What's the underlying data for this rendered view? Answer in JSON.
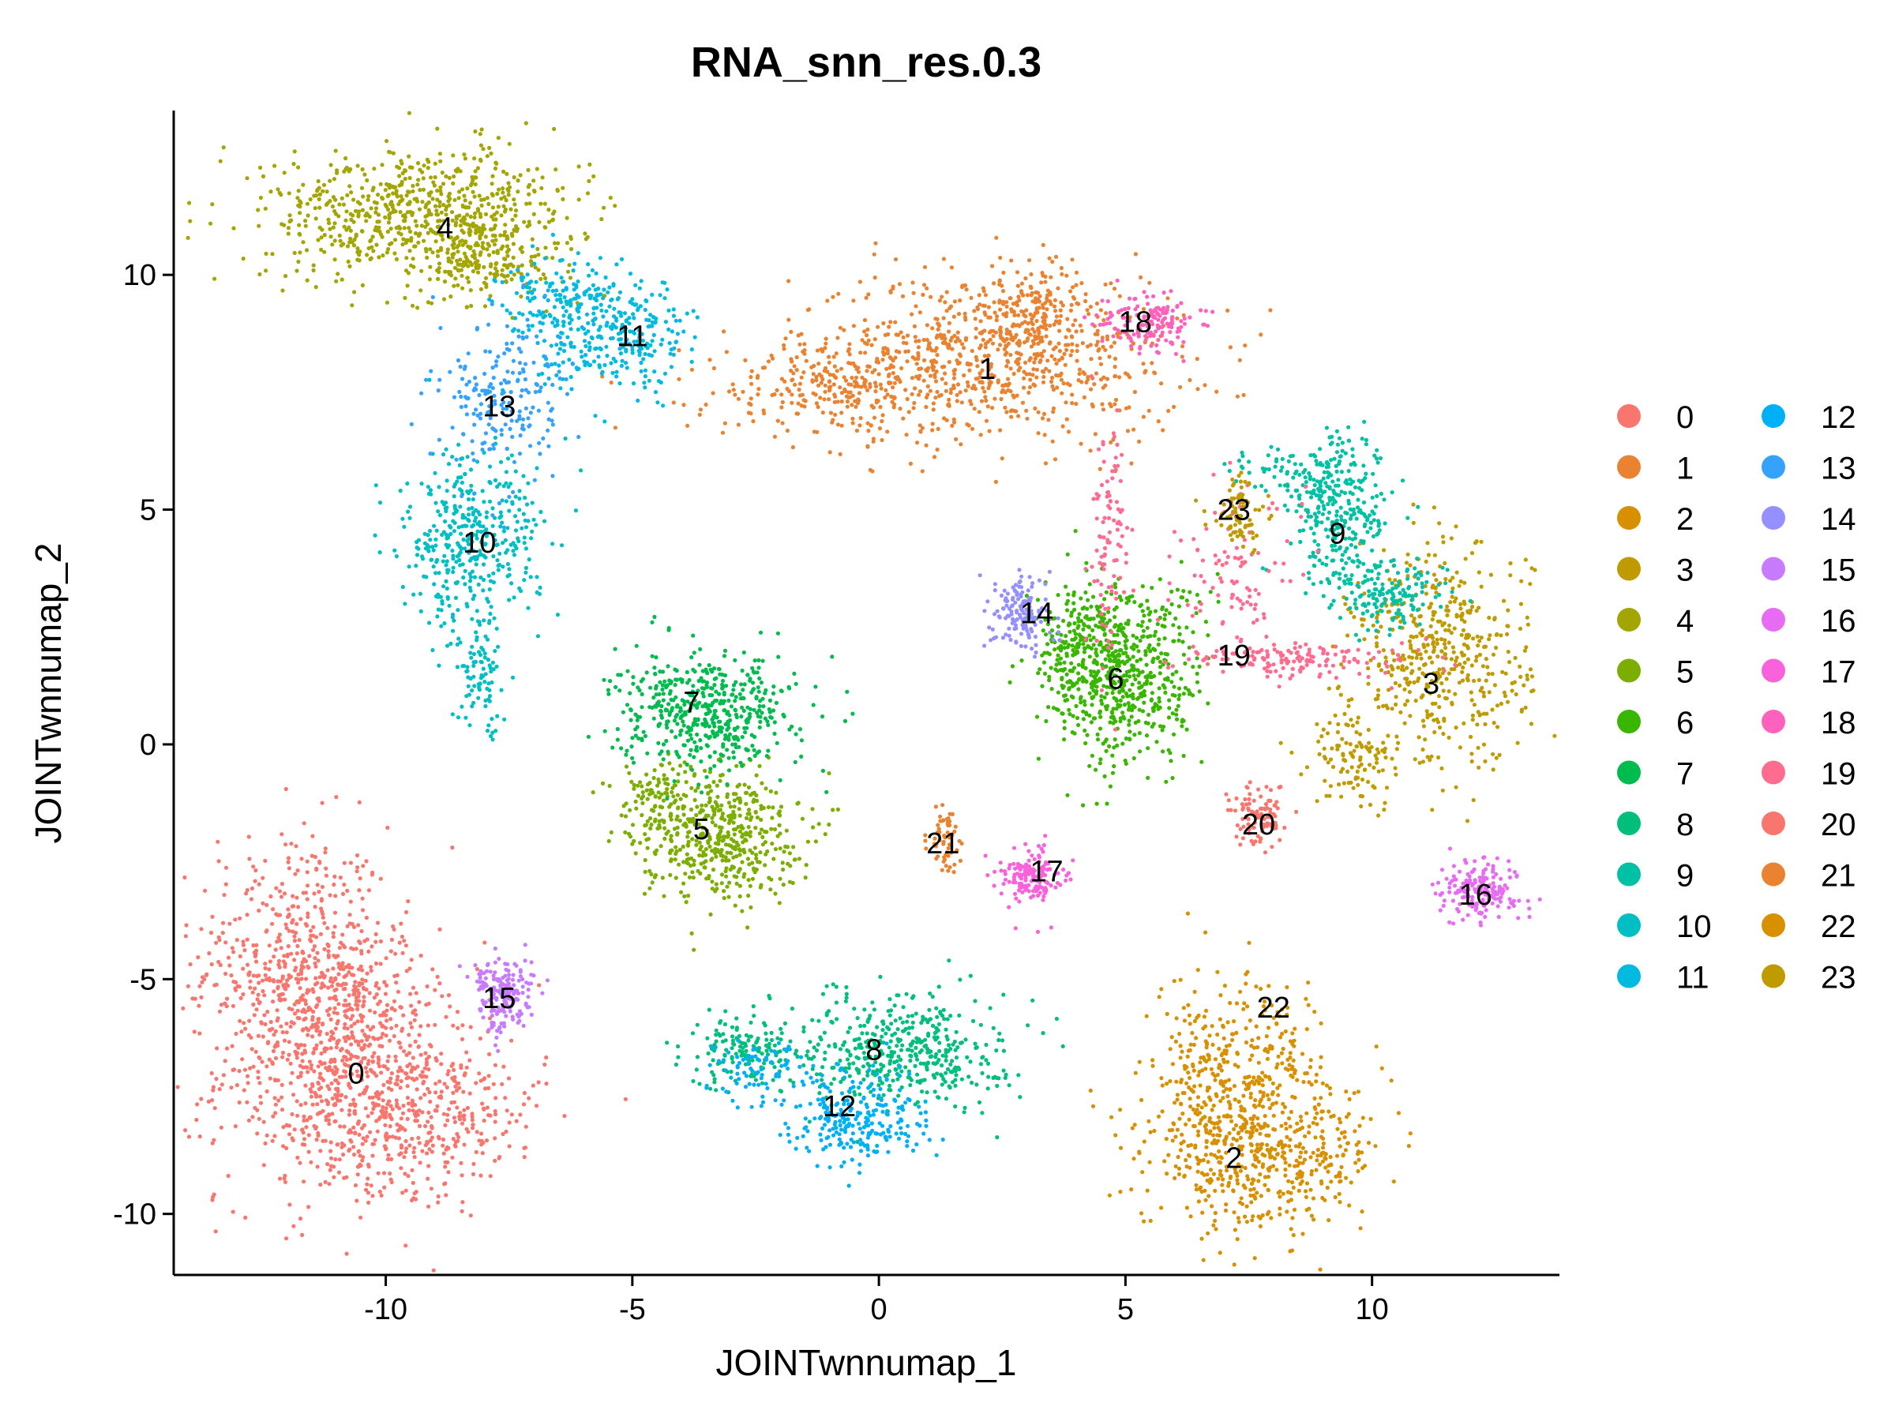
{
  "chart_data": {
    "type": "scatter",
    "title": "RNA_snn_res.0.3",
    "xlabel": "JOINTwnnumap_1",
    "ylabel": "JOINTwnnumap_2",
    "xlim": [
      -14.3,
      13.8
    ],
    "ylim": [
      -11.3,
      13.5
    ],
    "xticks": [
      -10,
      -5,
      0,
      5,
      10
    ],
    "yticks": [
      -10,
      -5,
      0,
      5,
      10
    ],
    "legend_position": "right",
    "grid": false,
    "clusters": [
      {
        "name": "0",
        "color": "#F8766D",
        "x": -10.6,
        "y": -7.0
      },
      {
        "name": "1",
        "color": "#EA8331",
        "x": 2.2,
        "y": 8.0
      },
      {
        "name": "2",
        "color": "#D89000",
        "x": 7.2,
        "y": -8.8
      },
      {
        "name": "3",
        "color": "#C09B00",
        "x": 11.2,
        "y": 1.3
      },
      {
        "name": "4",
        "color": "#A3A500",
        "x": -8.8,
        "y": 11.0
      },
      {
        "name": "5",
        "color": "#7CAE00",
        "x": -3.6,
        "y": -1.8
      },
      {
        "name": "6",
        "color": "#39B600",
        "x": 4.8,
        "y": 1.4
      },
      {
        "name": "7",
        "color": "#00BB4E",
        "x": -3.8,
        "y": 0.9
      },
      {
        "name": "8",
        "color": "#00BF7D",
        "x": -0.1,
        "y": -6.5
      },
      {
        "name": "9",
        "color": "#00C1A3",
        "x": 9.3,
        "y": 4.5
      },
      {
        "name": "10",
        "color": "#00BFC4",
        "x": -8.1,
        "y": 4.3
      },
      {
        "name": "11",
        "color": "#00BAE0",
        "x": -5.0,
        "y": 8.7
      },
      {
        "name": "12",
        "color": "#00B0F6",
        "x": -0.8,
        "y": -7.7
      },
      {
        "name": "13",
        "color": "#35A2FF",
        "x": -7.7,
        "y": 7.2
      },
      {
        "name": "14",
        "color": "#9590FF",
        "x": 3.2,
        "y": 2.8
      },
      {
        "name": "15",
        "color": "#C77CFF",
        "x": -7.7,
        "y": -5.4
      },
      {
        "name": "16",
        "color": "#E76BF3",
        "x": 12.1,
        "y": -3.2
      },
      {
        "name": "17",
        "color": "#FA62DB",
        "x": 3.4,
        "y": -2.7
      },
      {
        "name": "18",
        "color": "#FF62BC",
        "x": 5.2,
        "y": 9.0
      },
      {
        "name": "19",
        "color": "#FF6C90",
        "x": 7.2,
        "y": 1.9
      },
      {
        "name": "20",
        "color": "#F8766D",
        "x": 7.7,
        "y": -1.7
      },
      {
        "name": "21",
        "color": "#EA8331",
        "x": 1.3,
        "y": -2.1
      },
      {
        "name": "22",
        "color": "#D89000",
        "x": 8.0,
        "y": -5.6
      },
      {
        "name": "23",
        "color": "#C09B00",
        "x": 7.2,
        "y": 5.0
      }
    ]
  }
}
